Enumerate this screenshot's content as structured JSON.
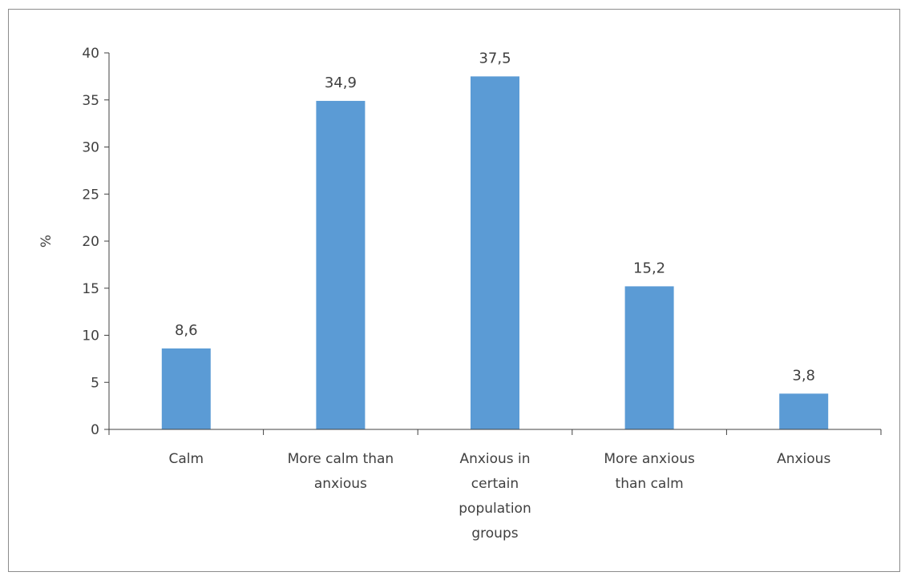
{
  "chart_data": {
    "type": "bar",
    "categories": [
      "Calm",
      "More calm than anxious",
      "Anxious in certain population groups",
      "More anxious than calm",
      "Anxious"
    ],
    "category_label_lines": [
      [
        "Calm"
      ],
      [
        "More calm than",
        "anxious"
      ],
      [
        "Anxious in",
        "certain",
        "population",
        "groups"
      ],
      [
        "More anxious",
        "than calm"
      ],
      [
        "Anxious"
      ]
    ],
    "values": [
      8.6,
      34.9,
      37.5,
      15.2,
      3.8
    ],
    "data_labels": [
      "8,6",
      "34,9",
      "37,5",
      "15,2",
      "3,8"
    ],
    "title": "",
    "xlabel": "",
    "ylabel": "%",
    "ylim": [
      0,
      40
    ],
    "yticks": [
      0,
      5,
      10,
      15,
      20,
      25,
      30,
      35,
      40
    ],
    "grid": false,
    "legend": "none",
    "bar_color": "#5b9bd5",
    "axis_color": "#404040",
    "text_color": "#404040"
  }
}
